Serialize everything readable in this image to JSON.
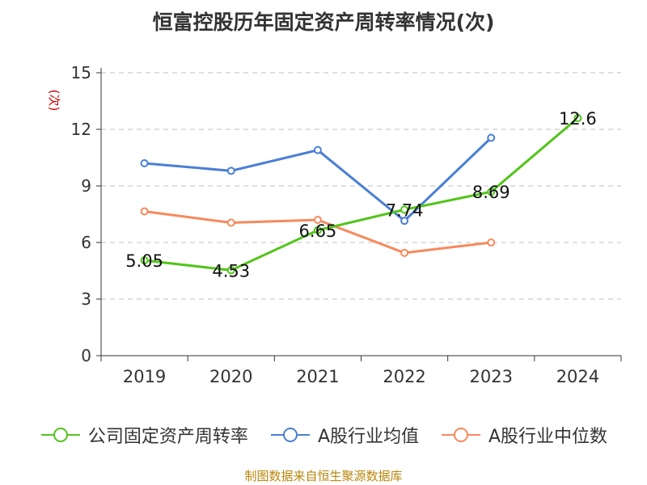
{
  "title": "恒富控股历年固定资产周转率情况(次)",
  "source": "制图数据来自恒生聚源数据库",
  "chart_data": {
    "type": "line",
    "categories": [
      "2019",
      "2020",
      "2021",
      "2022",
      "2023",
      "2024"
    ],
    "ylabel": "(次)",
    "ylim": [
      0,
      15
    ],
    "yticks": [
      0,
      3,
      6,
      9,
      12,
      15
    ],
    "grid": true,
    "legend_position": "bottom",
    "series": [
      {
        "name": "公司固定资产周转率",
        "color": "#52c41a",
        "values": [
          5.05,
          4.53,
          6.65,
          7.74,
          8.69,
          12.6
        ],
        "data_labels": [
          "5.05",
          "4.53",
          "6.65",
          "7.74",
          "8.69",
          "12.6"
        ]
      },
      {
        "name": "A股行业均值",
        "color": "#4a7fd4",
        "values": [
          10.2,
          9.8,
          10.9,
          7.15,
          11.55,
          null
        ]
      },
      {
        "name": "A股行业中位数",
        "color": "#f7895c",
        "values": [
          7.65,
          7.05,
          7.2,
          5.45,
          6.0,
          null
        ]
      }
    ]
  }
}
